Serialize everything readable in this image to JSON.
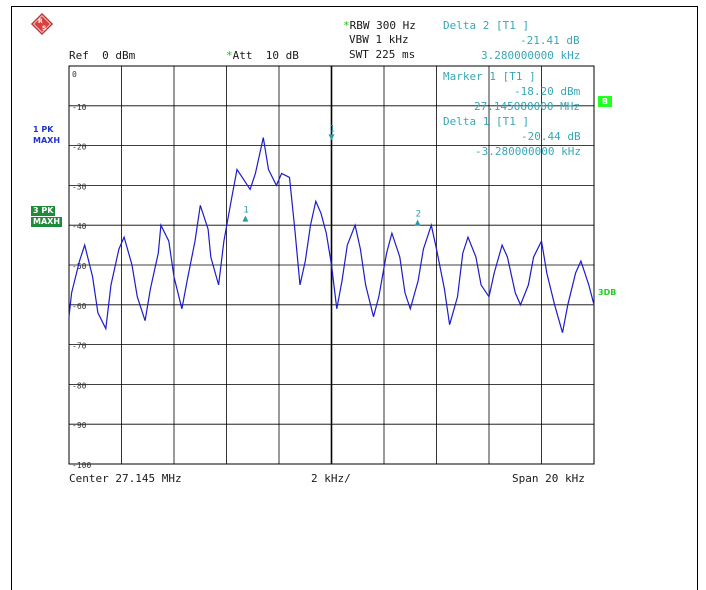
{
  "header": {
    "rbw": "RBW 300 Hz",
    "vbw": "VBW 1 kHz",
    "swt": "SWT 225 ms",
    "ref": "Ref  0 dBm",
    "att": "Att  10 dB",
    "delta2_title": "Delta 2 [T1 ]",
    "delta2_value": "-21.41 dB",
    "delta2_freq": "3.280000000 kHz"
  },
  "markers_info": {
    "marker1_title": "Marker 1 [T1 ]",
    "marker1_value": "-18.20 dBm",
    "marker1_freq": "27.145080000 MHz",
    "delta1_title": "Delta 1 [T1 ]",
    "delta1_value": "-20.44 dB",
    "delta1_freq": "-3.280000000 kHz"
  },
  "side_labels": {
    "trace1_a": "1 PK",
    "trace1_b": "MAXH",
    "trace3_a": "3 PK",
    "trace3_b": "MAXH",
    "badge_b": "B",
    "label_3db": "3DB"
  },
  "footer": {
    "center": "Center 27.145 MHz",
    "div": "2 kHz/",
    "span": "Span 20 kHz"
  },
  "colors": {
    "trace": "#1c1ccc",
    "marker": "#2b9aa8",
    "grid": "#000000"
  },
  "chart_data": {
    "type": "line",
    "xlabel": "",
    "ylabel": "",
    "xlim": [
      -10,
      10
    ],
    "ylim": [
      -100,
      0
    ],
    "yticks": [
      "0",
      "-10",
      "-20",
      "-30",
      "-40",
      "-50",
      "-60",
      "-70",
      "-80",
      "-90",
      "-100"
    ],
    "series": [
      {
        "x": [
          -10,
          -9.9,
          -9.6,
          -9.4,
          -9.1,
          -8.9,
          -8.6,
          -8.4,
          -8.1,
          -7.9,
          -7.6,
          -7.4,
          -7.1,
          -6.9,
          -6.6,
          -6.5,
          -6.2,
          -6.0,
          -5.7,
          -5.5,
          -5.2,
          -5.0,
          -4.7,
          -4.6,
          -4.3,
          -4.1,
          -3.8,
          -3.6,
          -3.3,
          -3.1,
          -2.9,
          -2.6,
          -2.4,
          -2.1,
          -1.9,
          -1.6,
          -1.4,
          -1.2,
          -1.0,
          -0.8,
          -0.6,
          -0.4,
          -0.2,
          0,
          0.2,
          0.4,
          0.6,
          0.9,
          1.1,
          1.3,
          1.6,
          1.8,
          2.1,
          2.3,
          2.6,
          2.8,
          3.0,
          3.3,
          3.5,
          3.8,
          4.0,
          4.3,
          4.5,
          4.8,
          5.0,
          5.2,
          5.5,
          5.7,
          6.0,
          6.2,
          6.5,
          6.7,
          7.0,
          7.2,
          7.5,
          7.7,
          8.0,
          8.2,
          8.5,
          8.8,
          9.0,
          9.3,
          9.5,
          9.8,
          10
        ],
        "y": [
          -63,
          -57,
          -49,
          -45,
          -53,
          -62,
          -66,
          -55,
          -46,
          -43,
          -50,
          -58,
          -64,
          -56,
          -47,
          -40,
          -44,
          -53,
          -61,
          -54,
          -44,
          -35,
          -41,
          -48,
          -55,
          -44,
          -33,
          -26,
          -29,
          -31,
          -27,
          -18,
          -26,
          -30,
          -27,
          -28,
          -41,
          -55,
          -49,
          -40,
          -34,
          -37,
          -42,
          -50,
          -61,
          -54,
          -45,
          -40,
          -46,
          -55,
          -63,
          -58,
          -47,
          -42,
          -48,
          -57,
          -61,
          -54,
          -46,
          -40,
          -46,
          -56,
          -65,
          -58,
          -47,
          -43,
          -48,
          -55,
          -58,
          -52,
          -45,
          -48,
          -57,
          -60,
          -55,
          -48,
          -44,
          -52,
          -60,
          -67,
          -60,
          -52,
          -49,
          -55,
          -60
        ]
      }
    ],
    "markers": [
      {
        "label": "1",
        "x": 0,
        "y": -18.2
      },
      {
        "label": "1",
        "x": -3.28,
        "y": -38.6
      },
      {
        "label": "2",
        "x": 3.28,
        "y": -39.6
      }
    ]
  }
}
